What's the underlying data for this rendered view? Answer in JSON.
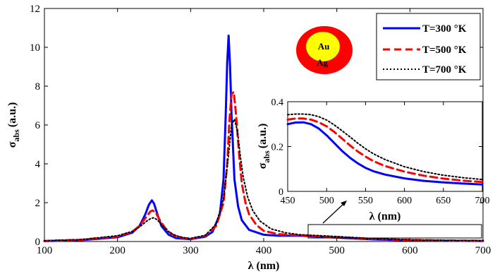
{
  "chart_data": [
    {
      "type": "line",
      "xlabel": "λ (nm)",
      "ylabel": "σ",
      "ylabel_sub": "abs",
      "ylabel_unit": "(a.u.)",
      "xlim": [
        100,
        700
      ],
      "ylim": [
        0,
        12
      ],
      "xticks": [
        "100",
        "200",
        "300",
        "400",
        "500",
        "600",
        "700"
      ],
      "yticks": [
        "0",
        "2",
        "4",
        "6",
        "8",
        "10",
        "12"
      ],
      "legend_position": "top-right",
      "series": [
        {
          "name": "T=300 °K",
          "color": "#0000ff",
          "style": "solid",
          "x": [
            100,
            150,
            200,
            220,
            230,
            238,
            243,
            247,
            250,
            255,
            260,
            270,
            280,
            300,
            320,
            330,
            340,
            345,
            348,
            350,
            352,
            354,
            356,
            360,
            365,
            370,
            380,
            400,
            420,
            450,
            500,
            550,
            600,
            650,
            700
          ],
          "y": [
            0.02,
            0.07,
            0.22,
            0.45,
            0.8,
            1.4,
            1.9,
            2.12,
            1.95,
            1.35,
            0.8,
            0.35,
            0.18,
            0.12,
            0.25,
            0.5,
            1.4,
            3.2,
            6.5,
            9.2,
            10.6,
            9.0,
            6.5,
            3.2,
            1.8,
            1.1,
            0.6,
            0.35,
            0.3,
            0.3,
            0.2,
            0.11,
            0.06,
            0.04,
            0.03
          ]
        },
        {
          "name": "T=500 °K",
          "color": "#ff0000",
          "style": "dashed",
          "x": [
            100,
            150,
            200,
            220,
            230,
            240,
            245,
            248,
            252,
            258,
            265,
            275,
            290,
            300,
            320,
            335,
            345,
            350,
            353,
            356,
            359,
            362,
            366,
            370,
            375,
            380,
            390,
            400,
            420,
            450,
            500,
            550,
            600,
            650,
            700
          ],
          "y": [
            0.03,
            0.09,
            0.26,
            0.5,
            0.8,
            1.3,
            1.55,
            1.6,
            1.5,
            1.1,
            0.7,
            0.35,
            0.18,
            0.14,
            0.3,
            0.8,
            2.0,
            4.0,
            6.2,
            7.6,
            7.7,
            6.6,
            4.6,
            3.0,
            2.0,
            1.4,
            0.85,
            0.55,
            0.38,
            0.32,
            0.23,
            0.13,
            0.08,
            0.05,
            0.04
          ]
        },
        {
          "name": "T=700 °K",
          "color": "#000000",
          "style": "dotted",
          "x": [
            100,
            150,
            200,
            220,
            230,
            240,
            246,
            250,
            255,
            262,
            270,
            280,
            290,
            300,
            320,
            335,
            345,
            352,
            356,
            360,
            364,
            368,
            372,
            378,
            385,
            395,
            410,
            430,
            450,
            500,
            550,
            600,
            650,
            700
          ],
          "y": [
            0.04,
            0.1,
            0.3,
            0.52,
            0.75,
            1.05,
            1.2,
            1.22,
            1.1,
            0.8,
            0.5,
            0.3,
            0.2,
            0.16,
            0.32,
            0.9,
            2.2,
            4.5,
            6.0,
            6.3,
            5.7,
            4.4,
            3.3,
            2.3,
            1.6,
            1.05,
            0.65,
            0.45,
            0.35,
            0.26,
            0.15,
            0.09,
            0.06,
            0.05
          ]
        }
      ]
    },
    {
      "type": "line",
      "xlabel": "λ (nm)",
      "ylabel": "σ",
      "ylabel_sub": "abs",
      "ylabel_unit": "(a.u.)",
      "xlim": [
        450,
        700
      ],
      "ylim": [
        0,
        0.4
      ],
      "xticks": [
        "450",
        "500",
        "550",
        "600",
        "650",
        "700"
      ],
      "yticks": [
        "0",
        "0.2",
        "0.4"
      ],
      "series": [
        {
          "name": "T=300 °K",
          "color": "#0000ff",
          "style": "solid",
          "x": [
            450,
            460,
            470,
            480,
            490,
            500,
            510,
            520,
            530,
            540,
            550,
            560,
            575,
            600,
            625,
            650,
            675,
            700
          ],
          "y": [
            0.3,
            0.307,
            0.308,
            0.3,
            0.28,
            0.25,
            0.215,
            0.18,
            0.15,
            0.125,
            0.105,
            0.09,
            0.075,
            0.058,
            0.047,
            0.04,
            0.035,
            0.031
          ]
        },
        {
          "name": "T=500 °K",
          "color": "#ff0000",
          "style": "dashed",
          "x": [
            450,
            460,
            470,
            480,
            490,
            500,
            510,
            520,
            530,
            540,
            550,
            560,
            575,
            600,
            625,
            650,
            675,
            700
          ],
          "y": [
            0.32,
            0.325,
            0.325,
            0.32,
            0.308,
            0.29,
            0.265,
            0.235,
            0.205,
            0.178,
            0.155,
            0.135,
            0.113,
            0.088,
            0.07,
            0.057,
            0.048,
            0.042
          ]
        },
        {
          "name": "T=700 °K",
          "color": "#000000",
          "style": "dotted",
          "x": [
            450,
            460,
            470,
            480,
            490,
            500,
            510,
            520,
            530,
            540,
            550,
            560,
            575,
            600,
            625,
            650,
            675,
            700
          ],
          "y": [
            0.342,
            0.345,
            0.345,
            0.342,
            0.333,
            0.318,
            0.296,
            0.27,
            0.243,
            0.215,
            0.19,
            0.168,
            0.142,
            0.11,
            0.088,
            0.072,
            0.061,
            0.053
          ]
        }
      ]
    }
  ],
  "legend": {
    "entries": [
      "T=300 °K",
      "T=500 °K",
      "T=700 °K"
    ]
  },
  "schematic": {
    "core_label": "Au",
    "shell_label": "Ag",
    "core_color": "#ffff00",
    "shell_color": "#ff0000"
  }
}
